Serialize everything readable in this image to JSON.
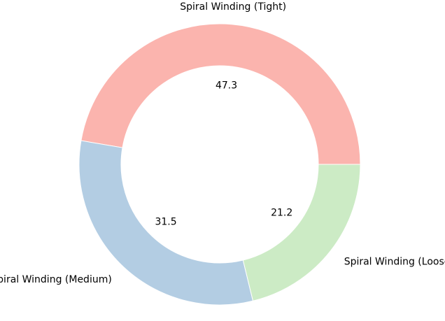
{
  "chart_data": {
    "type": "pie",
    "variant": "donut",
    "title": "",
    "start_angle_deg": 0,
    "direction": "counterclockwise",
    "slices": [
      {
        "label": "Spiral Winding (Tight)",
        "value": 47.3,
        "value_label": "47.3",
        "color": "#fbb4ae"
      },
      {
        "label": "Spiral Winding (Medium)",
        "value": 31.5,
        "value_label": "31.5",
        "color": "#b3cde3"
      },
      {
        "label": "Spiral Winding (Loose)",
        "value": 21.2,
        "value_label": "21.2",
        "color": "#ccebc5"
      }
    ]
  }
}
